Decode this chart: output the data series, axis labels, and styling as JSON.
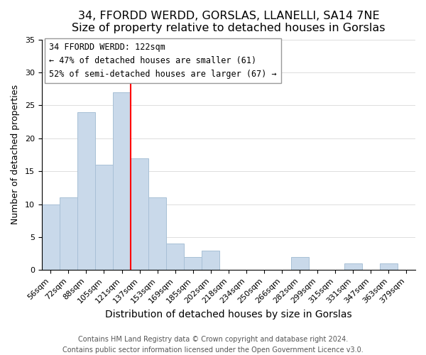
{
  "title": "34, FFORDD WERDD, GORSLAS, LLANELLI, SA14 7NE",
  "subtitle": "Size of property relative to detached houses in Gorslas",
  "xlabel": "Distribution of detached houses by size in Gorslas",
  "ylabel": "Number of detached properties",
  "bar_labels": [
    "56sqm",
    "72sqm",
    "88sqm",
    "105sqm",
    "121sqm",
    "137sqm",
    "153sqm",
    "169sqm",
    "185sqm",
    "202sqm",
    "218sqm",
    "234sqm",
    "250sqm",
    "266sqm",
    "282sqm",
    "299sqm",
    "315sqm",
    "331sqm",
    "347sqm",
    "363sqm",
    "379sqm"
  ],
  "bar_values": [
    10,
    11,
    24,
    16,
    27,
    17,
    11,
    4,
    2,
    3,
    0,
    0,
    0,
    0,
    2,
    0,
    0,
    1,
    0,
    1,
    0
  ],
  "bar_color": "#c9d9ea",
  "bar_edge_color": "#a8c0d6",
  "vline_color": "red",
  "vline_x_index": 4,
  "ylim": [
    0,
    35
  ],
  "yticks": [
    0,
    5,
    10,
    15,
    20,
    25,
    30,
    35
  ],
  "annotation_title": "34 FFORDD WERDD: 122sqm",
  "annotation_line1": "← 47% of detached houses are smaller (61)",
  "annotation_line2": "52% of semi-detached houses are larger (67) →",
  "annotation_box_color": "white",
  "annotation_box_edge": "#999999",
  "footer_line1": "Contains HM Land Registry data © Crown copyright and database right 2024.",
  "footer_line2": "Contains public sector information licensed under the Open Government Licence v3.0.",
  "title_fontsize": 11.5,
  "xlabel_fontsize": 10,
  "ylabel_fontsize": 9,
  "tick_fontsize": 8,
  "footer_fontsize": 7,
  "annotation_fontsize": 8.5
}
